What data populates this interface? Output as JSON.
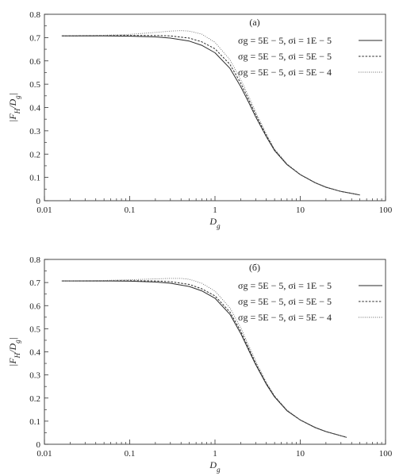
{
  "chart_data": [
    {
      "type": "line",
      "title": "(а)",
      "xlabel": "D_g",
      "ylabel": "|F_H/D_g|",
      "xscale": "log",
      "xlim": [
        0.01,
        100
      ],
      "ylim": [
        0,
        0.8
      ],
      "xticks": [
        "0.01",
        "0.1",
        "1",
        "10",
        "100"
      ],
      "yticks": [
        "0",
        "0.1",
        "0.2",
        "0.3",
        "0.4",
        "0.5",
        "0.6",
        "0.7",
        "0.8"
      ],
      "legend_position": "top-right",
      "grid": false,
      "series": [
        {
          "name": "σg = 5E − 5, σi = 1E − 5",
          "style": "solid",
          "x": [
            0.016,
            0.05,
            0.1,
            0.2,
            0.3,
            0.5,
            0.7,
            1,
            1.5,
            2,
            2.5,
            3,
            4,
            5,
            7,
            10,
            15,
            20,
            30,
            50
          ],
          "y": [
            0.707,
            0.707,
            0.706,
            0.703,
            0.698,
            0.685,
            0.667,
            0.635,
            0.568,
            0.49,
            0.42,
            0.36,
            0.275,
            0.215,
            0.155,
            0.112,
            0.077,
            0.058,
            0.04,
            0.025
          ]
        },
        {
          "name": "σg = 5E − 5, σi = 5E − 5",
          "style": "dashed",
          "x": [
            0.016,
            0.05,
            0.1,
            0.2,
            0.3,
            0.5,
            0.7,
            1,
            1.5,
            2,
            2.5,
            3,
            4,
            5,
            7,
            10,
            15,
            20,
            30,
            50
          ],
          "y": [
            0.707,
            0.708,
            0.709,
            0.709,
            0.707,
            0.698,
            0.682,
            0.652,
            0.585,
            0.505,
            0.432,
            0.37,
            0.28,
            0.218,
            0.156,
            0.112,
            0.077,
            0.058,
            0.04,
            0.025
          ]
        },
        {
          "name": "σg = 5E − 5, σi = 5E − 4",
          "style": "dotted",
          "x": [
            0.016,
            0.05,
            0.1,
            0.2,
            0.3,
            0.4,
            0.5,
            0.7,
            1,
            1.5,
            2,
            2.5,
            3,
            4,
            5,
            7,
            10,
            15,
            20,
            30,
            50
          ],
          "y": [
            0.708,
            0.71,
            0.714,
            0.722,
            0.728,
            0.73,
            0.728,
            0.715,
            0.68,
            0.605,
            0.52,
            0.445,
            0.38,
            0.287,
            0.222,
            0.158,
            0.113,
            0.078,
            0.059,
            0.04,
            0.025
          ]
        }
      ]
    },
    {
      "type": "line",
      "title": "(б)",
      "xlabel": "D_g",
      "ylabel": "|F_H/D_g|",
      "xscale": "log",
      "xlim": [
        0.01,
        100
      ],
      "ylim": [
        0,
        0.8
      ],
      "xticks": [
        "0.01",
        "0.1",
        "1",
        "10",
        "100"
      ],
      "yticks": [
        "0",
        "0.1",
        "0.2",
        "0.3",
        "0.4",
        "0.5",
        "0.6",
        "0.7",
        "0.8"
      ],
      "legend_position": "top-right",
      "grid": false,
      "series": [
        {
          "name": "σg = 5E − 5, σi = 1E − 5",
          "style": "solid",
          "x": [
            0.016,
            0.05,
            0.1,
            0.2,
            0.3,
            0.5,
            0.7,
            1,
            1.5,
            2,
            2.5,
            3,
            4,
            5,
            7,
            10,
            15,
            20,
            35
          ],
          "y": [
            0.707,
            0.707,
            0.706,
            0.702,
            0.697,
            0.683,
            0.664,
            0.632,
            0.562,
            0.48,
            0.405,
            0.345,
            0.26,
            0.205,
            0.145,
            0.105,
            0.072,
            0.055,
            0.03
          ]
        },
        {
          "name": "σg = 5E − 5, σi = 5E − 5",
          "style": "dashed",
          "x": [
            0.016,
            0.05,
            0.1,
            0.2,
            0.3,
            0.5,
            0.7,
            1,
            1.5,
            2,
            2.5,
            3,
            4,
            5,
            7,
            10,
            15,
            20,
            35
          ],
          "y": [
            0.707,
            0.707,
            0.708,
            0.707,
            0.704,
            0.692,
            0.673,
            0.642,
            0.572,
            0.49,
            0.413,
            0.35,
            0.263,
            0.207,
            0.146,
            0.105,
            0.072,
            0.055,
            0.03
          ]
        },
        {
          "name": "σg = 5E − 5, σi = 5E − 4",
          "style": "dotted",
          "x": [
            0.016,
            0.05,
            0.1,
            0.2,
            0.3,
            0.4,
            0.5,
            0.7,
            1,
            1.5,
            2,
            2.5,
            3,
            4,
            5,
            7,
            10,
            15,
            20,
            35
          ],
          "y": [
            0.707,
            0.709,
            0.712,
            0.716,
            0.718,
            0.718,
            0.714,
            0.697,
            0.663,
            0.59,
            0.505,
            0.425,
            0.36,
            0.268,
            0.21,
            0.148,
            0.106,
            0.073,
            0.055,
            0.03
          ]
        }
      ]
    }
  ]
}
